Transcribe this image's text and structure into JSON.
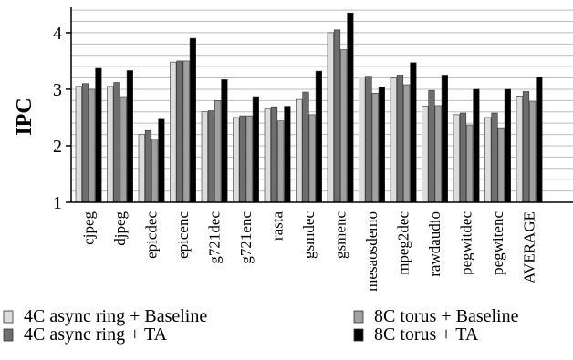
{
  "chart_data": {
    "type": "bar",
    "ylabel": "IPC",
    "xlabel": "",
    "ylim": [
      1,
      4.45
    ],
    "yticks": [
      1,
      2,
      3,
      4
    ],
    "grid": "horizontal",
    "legend_position": "bottom",
    "categories": [
      "cjpeg",
      "djpeg",
      "epicdec",
      "epicenc",
      "g721dec",
      "g721enc",
      "rasta",
      "gsmdec",
      "gsmenc",
      "mesaosdemo",
      "mpeg2dec",
      "rawdaudio",
      "pegwitdec",
      "pegwitenc",
      "AVERAGE"
    ],
    "series": [
      {
        "name": "4C async ring + Baseline",
        "color": "#dcdcdc",
        "values": [
          3.05,
          3.05,
          2.2,
          3.48,
          2.6,
          2.5,
          2.65,
          2.82,
          4.0,
          3.22,
          3.2,
          2.7,
          2.55,
          2.5,
          2.88
        ]
      },
      {
        "name": "4C async ring + TA",
        "color": "#6e6e6e",
        "values": [
          3.1,
          3.12,
          2.27,
          3.5,
          2.62,
          2.53,
          2.69,
          2.95,
          4.05,
          3.23,
          3.25,
          2.98,
          2.58,
          2.58,
          2.96
        ]
      },
      {
        "name": "8C torus + Baseline",
        "color": "#a0a0a0",
        "values": [
          3.0,
          2.87,
          2.12,
          3.5,
          2.8,
          2.53,
          2.44,
          2.55,
          3.7,
          2.93,
          3.08,
          2.71,
          2.37,
          2.32,
          2.78
        ]
      },
      {
        "name": "8C torus + TA",
        "color": "#000000",
        "values": [
          3.37,
          3.33,
          2.47,
          3.9,
          3.17,
          2.87,
          2.7,
          3.32,
          4.35,
          3.04,
          3.47,
          3.25,
          3.0,
          3.0,
          3.22
        ]
      }
    ]
  }
}
